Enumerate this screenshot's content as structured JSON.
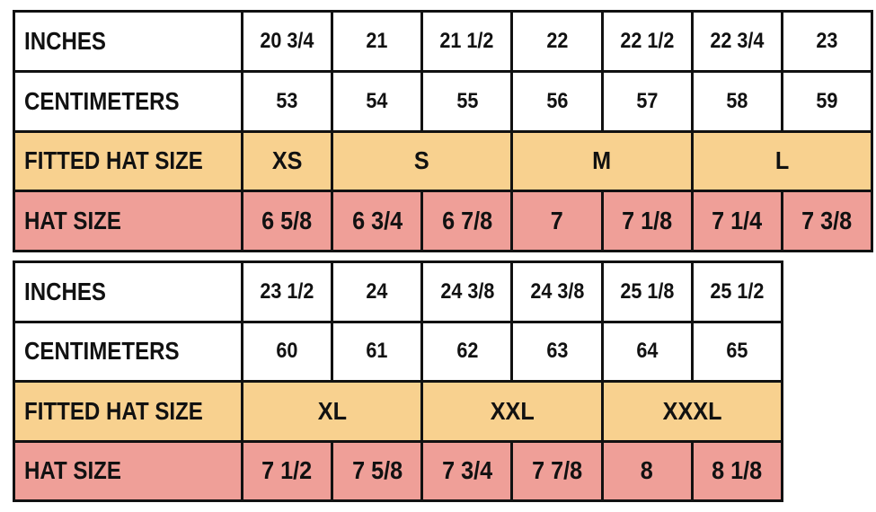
{
  "tables": [
    {
      "rows": [
        {
          "label": "INCHES",
          "cells": [
            "20 3/4",
            "21",
            "21 1/2",
            "22",
            "22 1/2",
            "22 3/4",
            "23"
          ]
        },
        {
          "label": "CENTIMETERS",
          "cells": [
            "53",
            "54",
            "55",
            "56",
            "57",
            "58",
            "59"
          ]
        },
        {
          "label": "FITTED HAT SIZE",
          "cells": [
            "XS",
            "S",
            "M",
            "L"
          ]
        },
        {
          "label": "HAT SIZE",
          "cells": [
            "6 5/8",
            "6 3/4",
            "6 7/8",
            "7",
            "7 1/8",
            "7 1/4",
            "7 3/8"
          ]
        }
      ]
    },
    {
      "rows": [
        {
          "label": "INCHES",
          "cells": [
            "23 1/2",
            "24",
            "24 3/8",
            "24 3/8",
            "25 1/8",
            "25 1/2"
          ]
        },
        {
          "label": "CENTIMETERS",
          "cells": [
            "60",
            "61",
            "62",
            "63",
            "64",
            "65"
          ]
        },
        {
          "label": "FITTED HAT SIZE",
          "cells": [
            "XL",
            "XXL",
            "XXXL"
          ]
        },
        {
          "label": "HAT SIZE",
          "cells": [
            "7 1/2",
            "7 5/8",
            "7 3/4",
            "7 7/8",
            "8",
            "8 1/8"
          ]
        }
      ]
    }
  ]
}
